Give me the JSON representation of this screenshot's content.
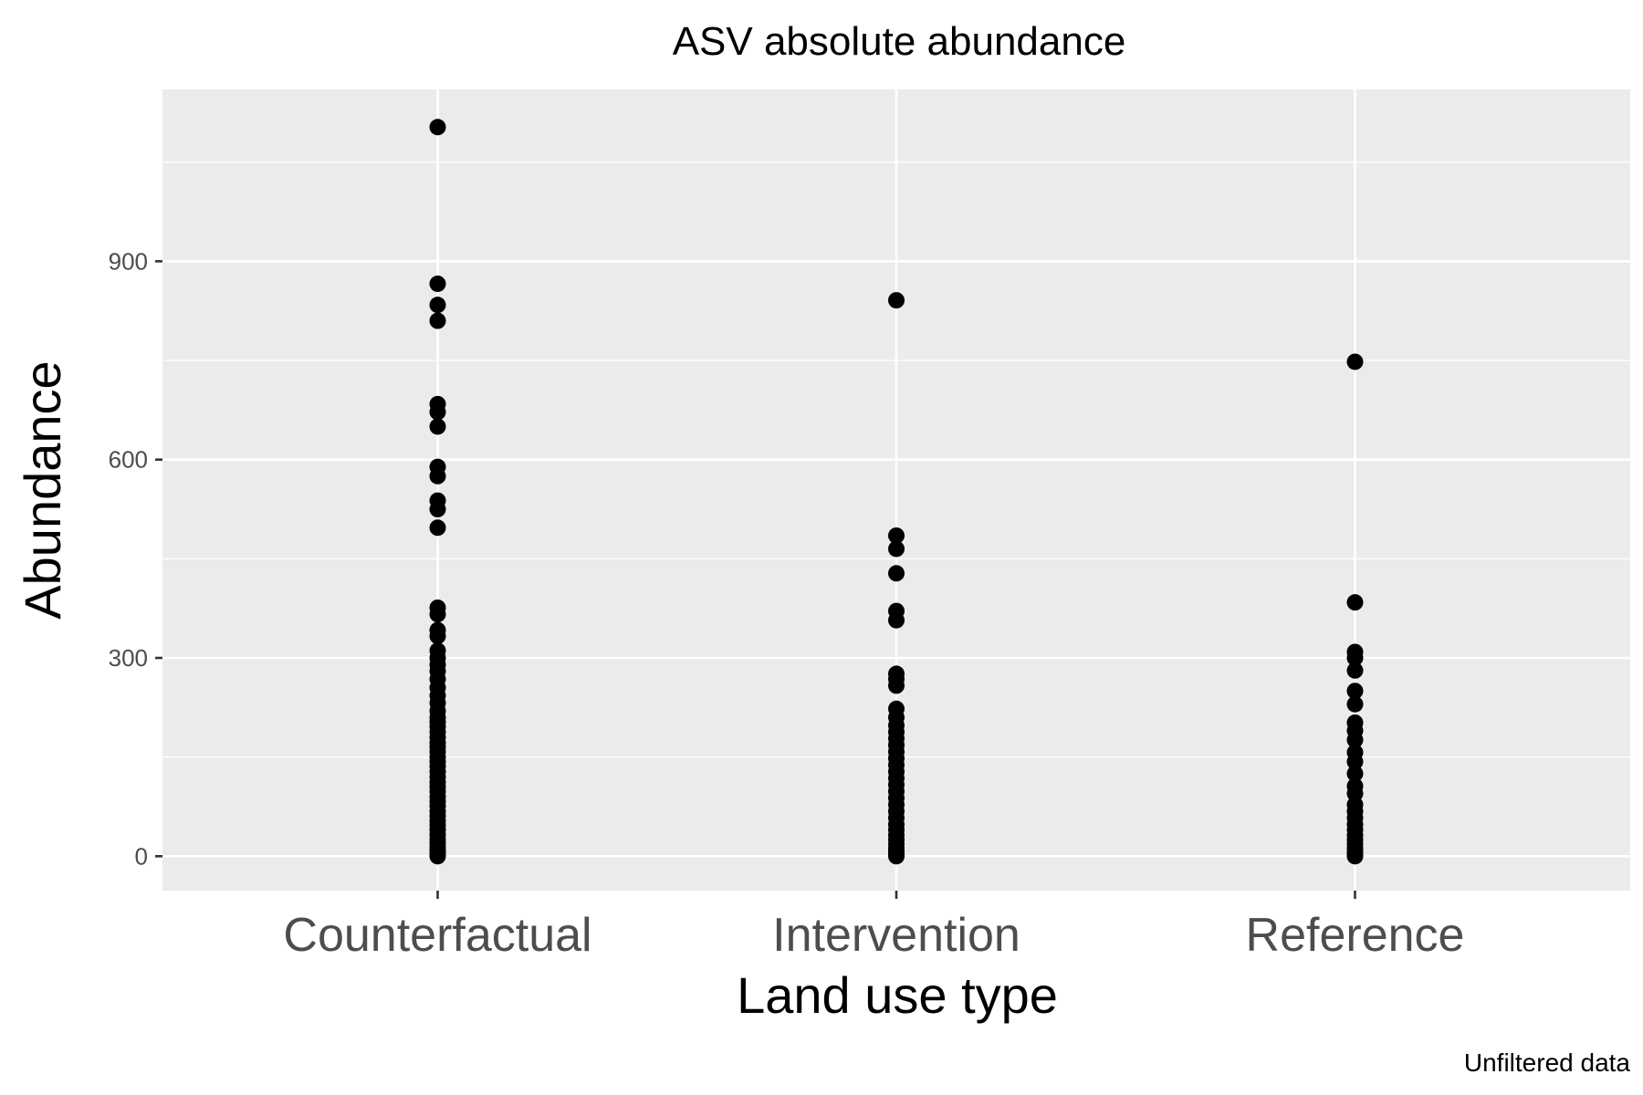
{
  "chart_data": {
    "type": "scatter",
    "title": "ASV absolute abundance",
    "xlabel": "Land use type",
    "ylabel": "Abundance",
    "caption": "Unfiltered data",
    "categories": [
      "Counterfactual",
      "Intervention",
      "Reference"
    ],
    "yticks": [
      0,
      300,
      600,
      900
    ],
    "ylim": [
      -52,
      1160
    ],
    "grid": true,
    "colors": {
      "panel": "#ebebeb",
      "grid": "#ffffff",
      "point": "#000000",
      "tick": "#333333"
    },
    "series": [
      {
        "category": "Counterfactual",
        "values": [
          1103,
          866,
          834,
          810,
          684,
          672,
          650,
          589,
          575,
          538,
          525,
          497,
          376,
          366,
          342,
          333,
          311,
          300,
          290,
          280,
          268,
          255,
          243,
          232,
          220,
          210,
          203,
          196,
          188,
          180,
          172,
          165,
          158,
          150,
          143,
          136,
          128,
          120,
          112,
          105,
          98,
          90,
          83,
          76,
          68,
          61,
          54,
          47,
          40,
          33,
          26,
          20,
          14,
          9,
          5,
          2,
          0
        ]
      },
      {
        "category": "Intervention",
        "values": [
          841,
          485,
          465,
          428,
          371,
          357,
          276,
          268,
          258,
          223,
          210,
          198,
          188,
          178,
          168,
          158,
          148,
          138,
          128,
          118,
          108,
          98,
          88,
          78,
          68,
          58,
          48,
          40,
          32,
          25,
          18,
          12,
          7,
          3,
          0
        ]
      },
      {
        "category": "Reference",
        "values": [
          748,
          384,
          309,
          300,
          281,
          250,
          230,
          202,
          190,
          176,
          157,
          143,
          125,
          106,
          95,
          78,
          68,
          58,
          48,
          40,
          32,
          25,
          18,
          12,
          7,
          3,
          0
        ]
      }
    ]
  }
}
